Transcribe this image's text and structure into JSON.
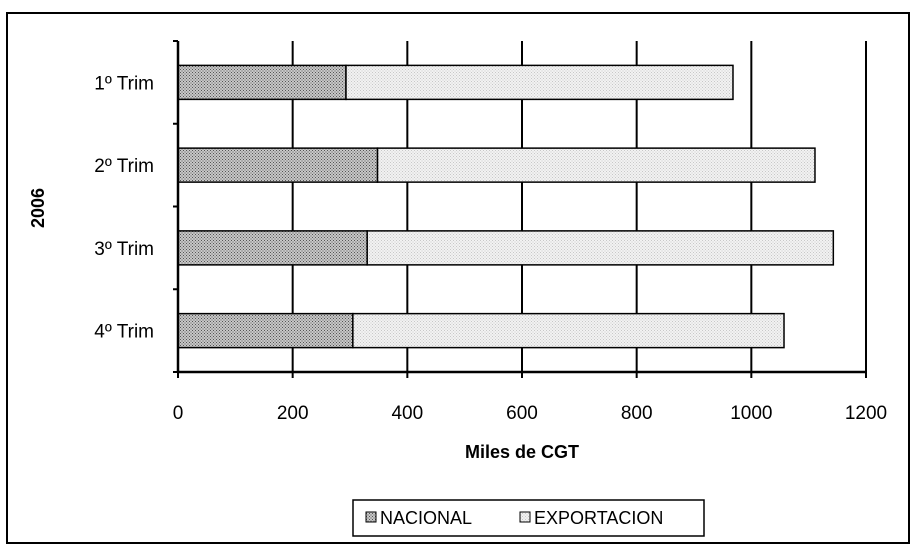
{
  "chart_data": {
    "type": "bar",
    "orientation": "horizontal",
    "stacked": true,
    "categories": [
      "1º Trim",
      "2º Trim",
      "3º Trim",
      "4º Trim"
    ],
    "series": [
      {
        "name": "NACIONAL",
        "values": [
          293,
          348,
          330,
          305
        ],
        "pattern": "dark-dotted"
      },
      {
        "name": "EXPORTACION",
        "values": [
          675,
          763,
          813,
          752
        ],
        "pattern": "light-dotted"
      }
    ],
    "xlabel": "Miles de CGT",
    "ylabel": "2006",
    "xlim": [
      0,
      1200
    ],
    "xticks": [
      "0",
      "200",
      "400",
      "600",
      "800",
      "1000",
      "1200"
    ],
    "grid": "vertical",
    "legend_position": "bottom"
  }
}
